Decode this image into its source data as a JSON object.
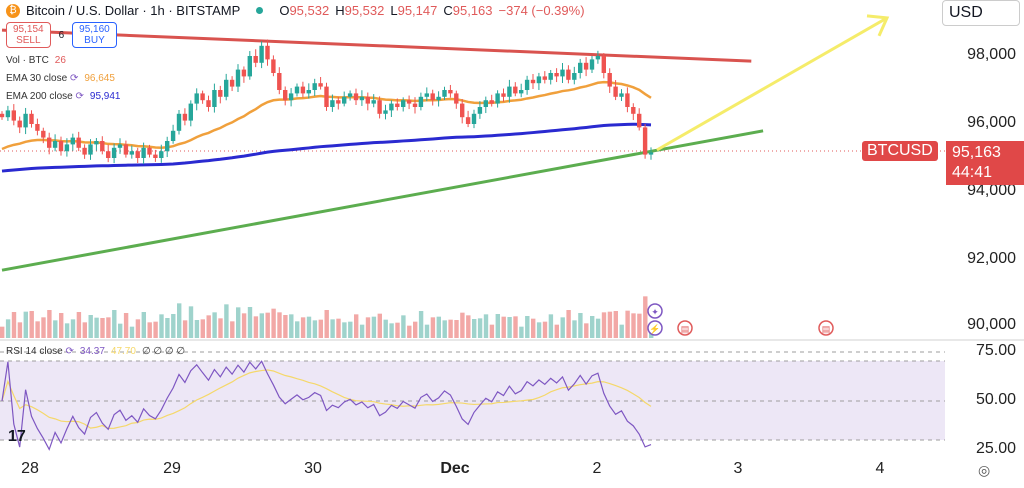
{
  "header": {
    "symbol": "Bitcoin / U.S. Dollar · 1h · BITSTAMP",
    "o_label": "O",
    "o": "95,532",
    "h_label": "H",
    "h": "95,532",
    "l_label": "L",
    "l": "95,147",
    "c_label": "C",
    "c": "95,163",
    "change": "−374 (−0.39%)"
  },
  "trade": {
    "sell_price": "95,154",
    "sell_label": "SELL",
    "spread": "6",
    "buy_price": "95,160",
    "buy_label": "BUY"
  },
  "legend": {
    "vol_label": "Vol · BTC",
    "vol_value": "26",
    "ema30_label": "EMA 30 close",
    "ema30_value": "96,645",
    "ema200_label": "EMA 200 close",
    "ema200_value": "95,941",
    "rsi_label": "RSI 14 close",
    "rsi_value": "34.37",
    "rsi_ma_value": "47.70",
    "rsi_extra": "∅ ∅ ∅ ∅"
  },
  "currency": "USD",
  "colors": {
    "up": "#26a69a",
    "down": "#ef5350",
    "ema30": "#f0a03c",
    "ema200": "#2a2ad0",
    "resistance": "#d9534f",
    "support": "#5cad4f",
    "arrow": "#f5ec6a",
    "rsi": "#7e57c2",
    "rsi_ma": "#f5d86a"
  },
  "symbol_badge": {
    "label": "BTCUSD",
    "price": "95,163",
    "countdown": "44:41"
  },
  "chart_data": {
    "type": "candlestick",
    "start": "2024-11-27T19:00",
    "interval_hours": 1,
    "closes": [
      96200,
      96400,
      96100,
      95900,
      96300,
      96000,
      95800,
      95600,
      95300,
      95500,
      95200,
      95400,
      95600,
      95300,
      95100,
      95400,
      95500,
      95200,
      95000,
      95300,
      95400,
      95100,
      95200,
      95000,
      95300,
      95100,
      95000,
      95200,
      95500,
      95800,
      96300,
      96100,
      96600,
      96900,
      96700,
      96500,
      97000,
      96800,
      97300,
      97100,
      97600,
      97400,
      98000,
      97800,
      98300,
      97900,
      97500,
      97000,
      96700,
      96900,
      97100,
      96900,
      97000,
      97200,
      97100,
      96500,
      96700,
      96600,
      96800,
      96900,
      96700,
      96800,
      96600,
      96700,
      96300,
      96400,
      96600,
      96500,
      96700,
      96600,
      96500,
      96800,
      96900,
      96700,
      96800,
      97000,
      96900,
      96600,
      96200,
      96000,
      96300,
      96500,
      96700,
      96600,
      96900,
      96800,
      97100,
      96900,
      97000,
      97300,
      97200,
      97400,
      97300,
      97500,
      97400,
      97600,
      97300,
      97500,
      97800,
      97600,
      97900,
      98000,
      97500,
      97100,
      96800,
      96900,
      96500,
      96300,
      95900,
      95100,
      95163
    ],
    "price_ticks": [
      "98,000",
      "96,000",
      "94,000",
      "92,000",
      "90,000"
    ],
    "rsi_ticks": [
      "75.00",
      "50.00",
      "25.00"
    ],
    "time_ticks": [
      "28",
      "29",
      "30",
      "Dec",
      "2",
      "3",
      "4"
    ],
    "trendlines": [
      {
        "name": "resistance",
        "from": {
          "t": "2024-11-27T19:00",
          "price": 98760
        },
        "to": {
          "t": "2024-12-03T02:00",
          "price": 97850
        }
      },
      {
        "name": "support",
        "from": {
          "t": "2024-11-27T19:00",
          "price": 91700
        },
        "to": {
          "t": "2024-12-03T04:00",
          "price": 95800
        }
      },
      {
        "name": "arrow",
        "from": {
          "t": "2024-12-02T10:00",
          "price": 95235
        },
        "to": {
          "t": "2024-12-04T01:00",
          "price": 99120
        }
      }
    ]
  }
}
